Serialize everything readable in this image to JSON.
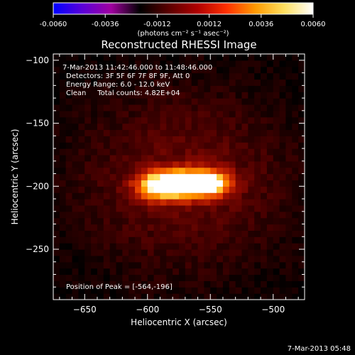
{
  "colorbar": {
    "ticks": [
      "-0.0060",
      "-0.0036",
      "-0.0012",
      "0.0012",
      "0.0036",
      "0.0060"
    ],
    "units": "(photons cm⁻² s⁻¹ asec⁻²)",
    "range": [
      -0.006,
      0.006
    ],
    "colors": [
      "#0000ff",
      "#5a00d8",
      "#a000a0",
      "#000000",
      "#5a0000",
      "#b00000",
      "#ff3000",
      "#ff9a00",
      "#ffe060",
      "#ffffff"
    ]
  },
  "chart_data": {
    "type": "heatmap",
    "title": "Reconstructed RHESSI Image",
    "xlabel": "Heliocentric X (arcsec)",
    "ylabel": "Heliocentric Y (arcsec)",
    "xlim": [
      -675,
      -475
    ],
    "ylim": [
      -290,
      -95
    ],
    "xticks": [
      -650,
      -600,
      -550,
      -500
    ],
    "yticks": [
      -100,
      -150,
      -200,
      -250
    ],
    "xtick_labels": [
      "−650",
      "−600",
      "−550",
      "−500"
    ],
    "ytick_labels": [
      "−100",
      "−150",
      "−200",
      "−250"
    ],
    "peak": [
      -564,
      -196
    ],
    "sources": [
      {
        "x": -572,
        "y": -198,
        "sx": 18,
        "sy": 8,
        "amp": 1.0
      },
      {
        "x": -548,
        "y": -197,
        "sx": 12,
        "sy": 7,
        "amp": 0.55
      },
      {
        "x": -595,
        "y": -200,
        "sx": 12,
        "sy": 8,
        "amp": 0.45
      }
    ],
    "annotations": [
      "7-Mar-2013 11:42:46.000 to 11:48:46.000",
      "Detectors: 3F 5F 6F 7F 8F 9F, Att 0",
      "Energy Range: 6.0 - 12.0 keV",
      "Clean     Total counts: 4.82E+04"
    ],
    "peak_label": "Position of Peak = [-564,-196]"
  },
  "footer": {
    "timestamp": "7-Mar-2013 05:48"
  }
}
